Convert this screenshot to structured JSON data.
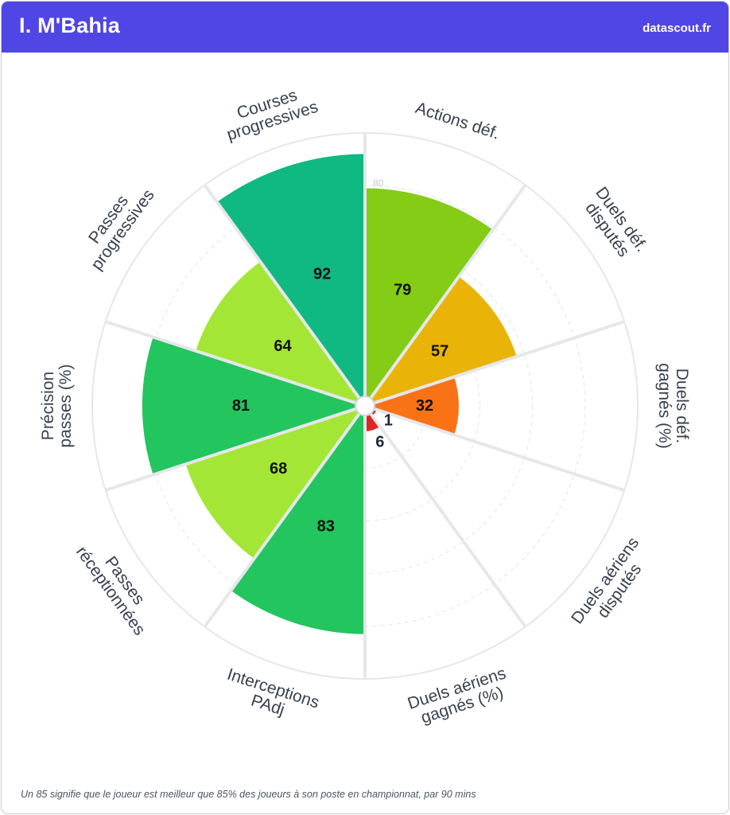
{
  "header": {
    "player_name": "I. M'Bahia",
    "brand": "datascout.fr"
  },
  "footnote": "Un 85 signifie que le joueur est meilleur que 85% des joueurs à son poste en championnat, par 90 mins",
  "chart_data": {
    "type": "polar-bar",
    "scale_max": 100,
    "ring_values": [
      20,
      40,
      60,
      80,
      100
    ],
    "visible_ring_label": "80",
    "categories": [
      {
        "label_lines": [
          "Actions déf."
        ],
        "value": 79,
        "color": "#84cc16"
      },
      {
        "label_lines": [
          "Duels déf.",
          "disputés"
        ],
        "value": 57,
        "color": "#eab308"
      },
      {
        "label_lines": [
          "Duels déf.",
          "gagnés (%)"
        ],
        "value": 32,
        "color": "#f97316"
      },
      {
        "label_lines": [
          "Duels aériens",
          "disputés"
        ],
        "value": 1,
        "color": "#dc2626"
      },
      {
        "label_lines": [
          "Duels aériens",
          "gagnés (%)"
        ],
        "value": 6,
        "color": "#dc2626"
      },
      {
        "label_lines": [
          "Interceptions",
          "PAdj"
        ],
        "value": 83,
        "color": "#22c55e"
      },
      {
        "label_lines": [
          "Passes",
          "réceptionnées"
        ],
        "value": 68,
        "color": "#a3e635"
      },
      {
        "label_lines": [
          "Précision",
          "passes (%)"
        ],
        "value": 81,
        "color": "#22c55e"
      },
      {
        "label_lines": [
          "Passes",
          "progressives"
        ],
        "value": 64,
        "color": "#a3e635"
      },
      {
        "label_lines": [
          "Courses",
          "progressives"
        ],
        "value": 92,
        "color": "#10b981"
      }
    ]
  }
}
